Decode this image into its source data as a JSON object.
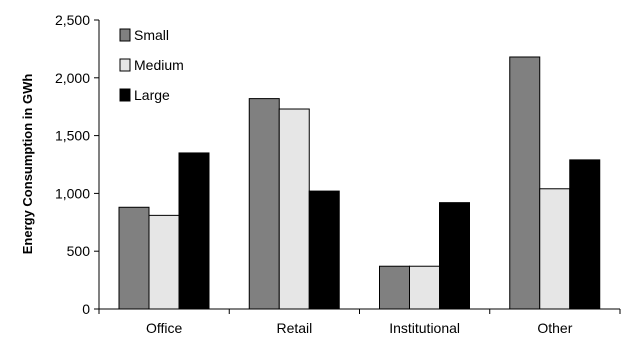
{
  "chart_data": {
    "type": "bar",
    "ylabel": "Energy Consumption in GWh",
    "xlabel": "",
    "categories": [
      "Office",
      "Retail",
      "Institutional",
      "Other"
    ],
    "ylim": [
      0,
      2500
    ],
    "yticks": [
      "0",
      "500",
      "1,000",
      "1,500",
      "2,000",
      "2,500"
    ],
    "ytick_values": [
      0,
      500,
      1000,
      1500,
      2000,
      2500
    ],
    "grid": false,
    "legend_position": "top-left",
    "series": [
      {
        "name": "Small",
        "color": "#808080",
        "values": [
          880,
          1820,
          370,
          2180
        ]
      },
      {
        "name": "Medium",
        "color": "#e6e6e6",
        "values": [
          810,
          1730,
          370,
          1040
        ]
      },
      {
        "name": "Large",
        "color": "#000000",
        "values": [
          1350,
          1020,
          920,
          1290
        ]
      }
    ]
  }
}
